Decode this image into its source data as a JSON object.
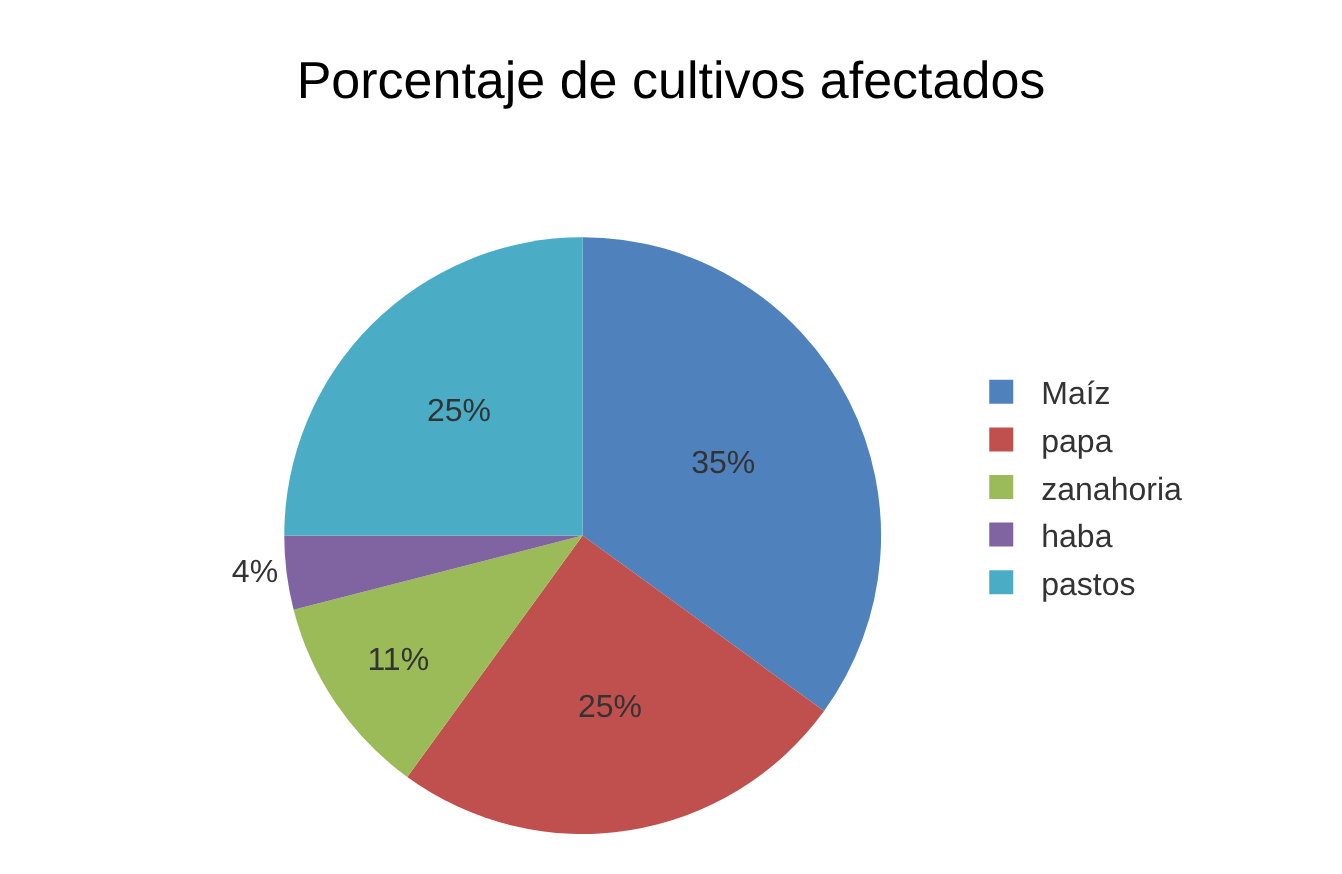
{
  "chart_data": {
    "type": "pie",
    "title": "Porcentaje de cultivos afectados",
    "categories": [
      "Maíz",
      "papa",
      "zanahoria",
      "haba",
      "pastos"
    ],
    "values": [
      35,
      25,
      11,
      4,
      25
    ],
    "value_labels": [
      "35%",
      "25%",
      "11%",
      "4%",
      "25%"
    ],
    "colors": [
      "#4f81bd",
      "#c0504d",
      "#9bbb59",
      "#8064a2",
      "#4bacc6"
    ],
    "legend": "right"
  }
}
